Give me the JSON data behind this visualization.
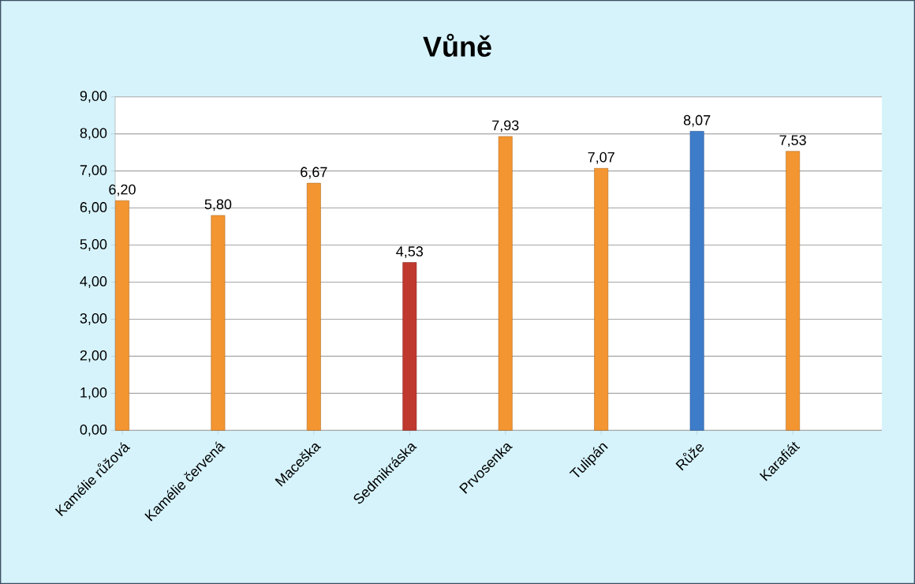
{
  "chart_data": {
    "type": "bar",
    "title": "Vůně",
    "categories": [
      "Kamélie růžová",
      "Kamélie červená",
      "Maceška",
      "Sedmikráska",
      "Prvosenka",
      "Tulipán",
      "Růže",
      "Karafiát"
    ],
    "values": [
      6.2,
      5.8,
      6.67,
      4.53,
      7.93,
      7.07,
      8.07,
      7.53
    ],
    "value_labels": [
      "6,20",
      "5,80",
      "6,67",
      "4,53",
      "7,93",
      "7,07",
      "8,07",
      "7,53"
    ],
    "colors": [
      "#f39530",
      "#f39530",
      "#f39530",
      "#c0392e",
      "#f39530",
      "#f39530",
      "#3d7cc9",
      "#f39530"
    ],
    "ylim": [
      0,
      9
    ],
    "yticks": [
      {
        "value": 0,
        "label": "0,00"
      },
      {
        "value": 1,
        "label": "1,00"
      },
      {
        "value": 2,
        "label": "2,00"
      },
      {
        "value": 3,
        "label": "3,00"
      },
      {
        "value": 4,
        "label": "4,00"
      },
      {
        "value": 5,
        "label": "5,00"
      },
      {
        "value": 6,
        "label": "6,00"
      },
      {
        "value": 7,
        "label": "7,00"
      },
      {
        "value": 8,
        "label": "8,00"
      },
      {
        "value": 9,
        "label": "9,00"
      }
    ],
    "grid": "y"
  }
}
